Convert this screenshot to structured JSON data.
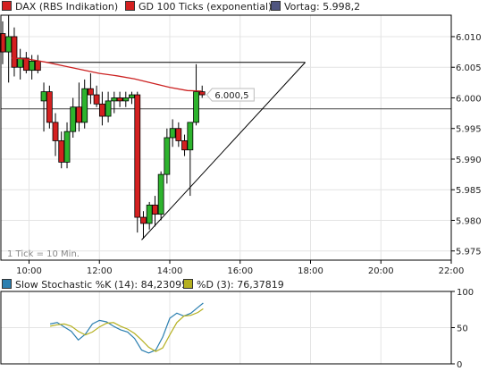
{
  "colors": {
    "up": "#2db32d",
    "down": "#d42020",
    "ma": "#cc2222",
    "panel_bg": "#ffffff",
    "grid": "#e4e4e4",
    "frame": "#000000",
    "stoch_k": "#2b7fb0",
    "stoch_d": "#b5b020",
    "header_bg": "#f0f0f0"
  },
  "legend": {
    "main": [
      {
        "label": "DAX (RBS Indikation)",
        "color": "#d42020"
      },
      {
        "label": "GD 100 Ticks (exponential)",
        "color": "#d42020"
      },
      {
        "label": "Vortag: 5.998,2",
        "color": "#4f5580"
      }
    ],
    "sub": [
      {
        "label": "Slow Stochastic %K (14): 84,23095",
        "color": "#2b7fb0"
      },
      {
        "label": "%D (3): 76,37819",
        "color": "#b5b020"
      }
    ]
  },
  "tick_note": "1 Tick = 10 Min.",
  "price_label": "6.000,5",
  "chart_data": [
    {
      "type": "candlestick",
      "x_unit": "hours",
      "xlim": [
        9.2,
        22.0
      ],
      "ylim": [
        5.9735,
        6.0135
      ],
      "xticks": [
        {
          "v": 10,
          "label": "10:00"
        },
        {
          "v": 12,
          "label": "12:00"
        },
        {
          "v": 14,
          "label": "14:00"
        },
        {
          "v": 16,
          "label": "16:00"
        },
        {
          "v": 18,
          "label": "18:00"
        },
        {
          "v": 20,
          "label": "20:00"
        },
        {
          "v": 22,
          "label": "22:00"
        }
      ],
      "yticks": [
        {
          "v": 5.975,
          "label": "5.975"
        },
        {
          "v": 5.98,
          "label": "5.980"
        },
        {
          "v": 5.985,
          "label": "5.985"
        },
        {
          "v": 5.99,
          "label": "5.990"
        },
        {
          "v": 5.995,
          "label": "5.995"
        },
        {
          "v": 6.0,
          "label": "6.000"
        },
        {
          "v": 6.005,
          "label": "6.005"
        },
        {
          "v": 6.01,
          "label": "6.010"
        }
      ],
      "reference_line": {
        "label": "Vortag",
        "value": 5.9982
      },
      "current_price": 6.0005,
      "candles": [
        {
          "t": 9.25,
          "o": 6.0105,
          "h": 6.0125,
          "l": 6.0055,
          "c": 6.0075
        },
        {
          "t": 9.42,
          "o": 6.0075,
          "h": 6.0135,
          "l": 6.0025,
          "c": 6.01
        },
        {
          "t": 9.58,
          "o": 6.01,
          "h": 6.0115,
          "l": 6.0035,
          "c": 6.005
        },
        {
          "t": 9.75,
          "o": 6.005,
          "h": 6.008,
          "l": 6.003,
          "c": 6.0065
        },
        {
          "t": 9.92,
          "o": 6.0065,
          "h": 6.0075,
          "l": 6.004,
          "c": 6.0045
        },
        {
          "t": 10.08,
          "o": 6.0045,
          "h": 6.007,
          "l": 6.003,
          "c": 6.006
        },
        {
          "t": 10.25,
          "o": 6.006,
          "h": 6.007,
          "l": 6.004,
          "c": 6.0045
        },
        {
          "t": 10.42,
          "o": 5.9995,
          "h": 6.0025,
          "l": 5.9945,
          "c": 6.001
        },
        {
          "t": 10.58,
          "o": 6.001,
          "h": 6.002,
          "l": 5.995,
          "c": 5.996
        },
        {
          "t": 10.75,
          "o": 5.996,
          "h": 5.9975,
          "l": 5.9905,
          "c": 5.993
        },
        {
          "t": 10.92,
          "o": 5.993,
          "h": 5.9945,
          "l": 5.9885,
          "c": 5.9895
        },
        {
          "t": 11.08,
          "o": 5.9895,
          "h": 5.996,
          "l": 5.9885,
          "c": 5.9945
        },
        {
          "t": 11.25,
          "o": 5.9945,
          "h": 6.0,
          "l": 5.9935,
          "c": 5.9985
        },
        {
          "t": 11.42,
          "o": 5.9985,
          "h": 6.0025,
          "l": 5.9945,
          "c": 5.996
        },
        {
          "t": 11.58,
          "o": 5.996,
          "h": 6.003,
          "l": 5.995,
          "c": 6.0015
        },
        {
          "t": 11.75,
          "o": 6.0015,
          "h": 6.004,
          "l": 5.999,
          "c": 6.0005
        },
        {
          "t": 11.92,
          "o": 6.0005,
          "h": 6.002,
          "l": 5.9985,
          "c": 5.999
        },
        {
          "t": 12.08,
          "o": 5.999,
          "h": 6.001,
          "l": 5.9955,
          "c": 5.997
        },
        {
          "t": 12.25,
          "o": 5.997,
          "h": 6.001,
          "l": 5.996,
          "c": 5.9995
        },
        {
          "t": 12.42,
          "o": 5.9995,
          "h": 6.001,
          "l": 5.9975,
          "c": 6.0
        },
        {
          "t": 12.58,
          "o": 6.0,
          "h": 6.001,
          "l": 5.9985,
          "c": 5.9995
        },
        {
          "t": 12.75,
          "o": 5.9995,
          "h": 6.001,
          "l": 5.9985,
          "c": 6.0
        },
        {
          "t": 12.92,
          "o": 6.0,
          "h": 6.001,
          "l": 5.999,
          "c": 6.0005
        },
        {
          "t": 13.08,
          "o": 6.0005,
          "h": 6.001,
          "l": 5.978,
          "c": 5.9805
        },
        {
          "t": 13.25,
          "o": 5.9805,
          "h": 5.9815,
          "l": 5.977,
          "c": 5.9795
        },
        {
          "t": 13.42,
          "o": 5.9795,
          "h": 5.983,
          "l": 5.9785,
          "c": 5.9825
        },
        {
          "t": 13.58,
          "o": 5.9825,
          "h": 5.984,
          "l": 5.979,
          "c": 5.981
        },
        {
          "t": 13.75,
          "o": 5.981,
          "h": 5.988,
          "l": 5.98,
          "c": 5.9875
        },
        {
          "t": 13.92,
          "o": 5.9875,
          "h": 5.995,
          "l": 5.986,
          "c": 5.9935
        },
        {
          "t": 14.08,
          "o": 5.9935,
          "h": 5.9965,
          "l": 5.992,
          "c": 5.995
        },
        {
          "t": 14.25,
          "o": 5.995,
          "h": 5.996,
          "l": 5.992,
          "c": 5.993
        },
        {
          "t": 14.42,
          "o": 5.993,
          "h": 5.994,
          "l": 5.9905,
          "c": 5.9915
        },
        {
          "t": 14.58,
          "o": 5.9915,
          "h": 5.996,
          "l": 5.984,
          "c": 5.996
        },
        {
          "t": 14.75,
          "o": 5.996,
          "h": 6.0055,
          "l": 5.9955,
          "c": 6.001
        },
        {
          "t": 14.92,
          "o": 6.001,
          "h": 6.002,
          "l": 6.0,
          "c": 6.0005
        }
      ],
      "moving_average": {
        "name": "GD 100 Ticks (exponential)",
        "x": [
          9.5,
          10,
          10.5,
          11,
          11.5,
          12,
          12.5,
          13,
          13.5,
          14,
          14.5,
          14.9
        ],
        "y": [
          6.0065,
          6.0063,
          6.0058,
          6.0052,
          6.0046,
          6.004,
          6.0036,
          6.0031,
          6.0024,
          6.0017,
          6.0012,
          6.0011
        ]
      },
      "trendlines": [
        {
          "x1": 10.5,
          "y1": 6.0058,
          "x2": 17.85,
          "y2": 6.0058
        },
        {
          "x1": 13.2,
          "y1": 5.9768,
          "x2": 17.85,
          "y2": 6.0058
        }
      ]
    },
    {
      "type": "line",
      "title": "Slow Stochastic",
      "xlim": [
        9.2,
        22.0
      ],
      "ylim": [
        0,
        100
      ],
      "yticks": [
        {
          "v": 0,
          "label": "0"
        },
        {
          "v": 50,
          "label": "50"
        },
        {
          "v": 100,
          "label": "100"
        }
      ],
      "series": [
        {
          "name": "Slow Stochastic %K (14)",
          "x": [
            10.6,
            10.8,
            11.0,
            11.2,
            11.4,
            11.6,
            11.8,
            12.0,
            12.2,
            12.4,
            12.6,
            12.8,
            13.0,
            13.2,
            13.4,
            13.6,
            13.8,
            14.0,
            14.2,
            14.4,
            14.6,
            14.8,
            14.95
          ],
          "y": [
            55,
            57,
            51,
            45,
            33,
            41,
            55,
            60,
            58,
            52,
            47,
            44,
            35,
            19,
            15,
            19,
            37,
            63,
            70,
            66,
            70,
            78,
            84
          ]
        },
        {
          "name": "%D (3)",
          "x": [
            10.6,
            10.8,
            11.0,
            11.2,
            11.4,
            11.6,
            11.8,
            12.0,
            12.2,
            12.4,
            12.6,
            12.8,
            13.0,
            13.2,
            13.4,
            13.6,
            13.8,
            14.0,
            14.2,
            14.4,
            14.6,
            14.8,
            14.95
          ],
          "y": [
            52,
            54,
            55,
            52,
            45,
            40,
            44,
            51,
            56,
            57,
            52,
            48,
            42,
            33,
            23,
            17,
            22,
            40,
            57,
            66,
            67,
            71,
            76
          ]
        }
      ]
    }
  ]
}
